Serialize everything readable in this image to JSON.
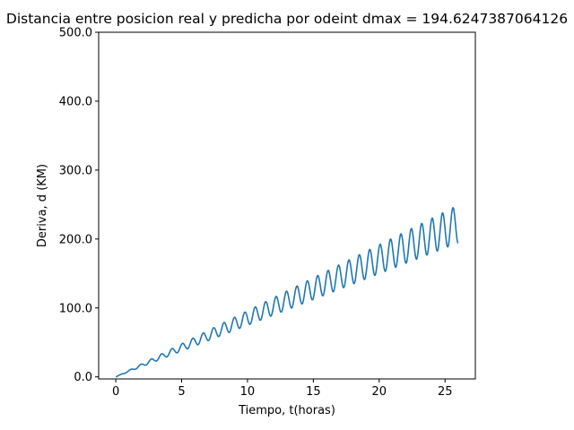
{
  "chart_data": {
    "type": "line",
    "title": "Distancia entre posicion real y predicha por odeint dmax = 194.6247387064126",
    "xlabel": "Tiempo, t(horas)",
    "ylabel": "Deriva, d (KM)",
    "xlim": [
      -1.3,
      27.3
    ],
    "ylim": [
      -3,
      500
    ],
    "xticks": [
      0,
      5,
      10,
      15,
      20,
      25
    ],
    "xtick_labels": [
      "0",
      "5",
      "10",
      "15",
      "20",
      "25"
    ],
    "yticks": [
      0,
      100,
      200,
      300,
      400,
      500
    ],
    "ytick_labels": [
      "0.0",
      "100.0",
      "200.0",
      "300.0",
      "400.0",
      "500.0"
    ],
    "grid": false,
    "series": [
      {
        "color": "#1f77b4",
        "x_start": 0,
        "x_end": 26,
        "values_note_trend_slope_km_per_hour": 6.8,
        "oscillation_period_hours": 0.79,
        "oscillation_amplitude_growth_km_per_hour": 1.05,
        "final_value": 194.6
      }
    ]
  }
}
